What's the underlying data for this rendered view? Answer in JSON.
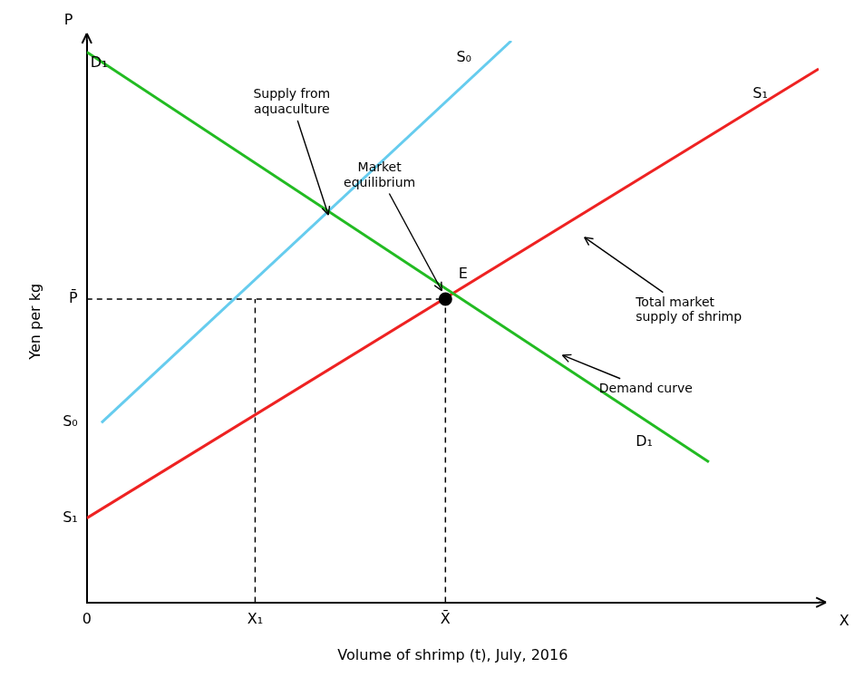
{
  "chart_data": {
    "type": "line",
    "xlabel": "Volume of shrimp (t), July, 2016",
    "ylabel": "Yen per kg",
    "xlim": [
      0,
      10
    ],
    "ylim": [
      0,
      10
    ],
    "xticks": [
      0,
      {
        "value": 2.3,
        "label": "X₁"
      },
      {
        "value": 4.9,
        "label": "X̄"
      }
    ],
    "yticks": [
      {
        "value": 1.5,
        "label": "S₁"
      },
      {
        "value": 3.2,
        "label": "S₀"
      },
      {
        "value": 5.4,
        "label": "P̄"
      }
    ],
    "grid": false,
    "series": [
      {
        "x": [
          0,
          8.5
        ],
        "values": [
          9.8,
          2.5
        ],
        "color": "#22bb22"
      },
      {
        "x": [
          0.2,
          5.8
        ],
        "values": [
          3.2,
          10.0
        ],
        "color": "#66ccee"
      },
      {
        "x": [
          0,
          10
        ],
        "values": [
          1.5,
          9.5
        ],
        "color": "#ee2222"
      },
      {
        "type": "scatter",
        "x": [
          4.9
        ],
        "values": [
          5.4
        ],
        "color": "#000000",
        "marker": "circle"
      },
      {
        "x": [
          0,
          4.9
        ],
        "values": [
          5.4,
          5.4
        ],
        "color": "#000000",
        "line_style": "dashed"
      },
      {
        "x": [
          2.3,
          2.3
        ],
        "values": [
          0,
          5.4
        ],
        "color": "#000000",
        "line_style": "dashed"
      },
      {
        "x": [
          4.9,
          4.9
        ],
        "values": [
          0,
          5.4
        ],
        "color": "#000000",
        "line_style": "dashed"
      }
    ],
    "annotations": [
      {
        "text": "X",
        "x": 10.35,
        "y": -0.35
      },
      {
        "text": "P",
        "x": -0.25,
        "y": 10.35
      },
      {
        "text": "D₁",
        "x": 0.05,
        "y": 9.6
      },
      {
        "text": "D₁",
        "x": 7.5,
        "y": 2.85
      },
      {
        "text": "S₀",
        "x": 5.05,
        "y": 9.7
      },
      {
        "text": "S₁",
        "x": 9.1,
        "y": 9.05
      },
      {
        "text": "E",
        "x": 5.08,
        "y": 5.68
      },
      {
        "text": "Supply from\naquaculture",
        "x": 2.8,
        "y": 8.9,
        "arrow_x": 3.3,
        "arrow_y": 6.9
      },
      {
        "text": "Market\nequilibrium",
        "x": 4.0,
        "y": 7.6,
        "arrow_x": 4.85,
        "arrow_y": 5.55
      },
      {
        "text": "Total market\nsupply of shrimp",
        "x": 7.5,
        "y": 5.2,
        "arrow_x": 6.8,
        "arrow_y": 6.5
      },
      {
        "text": "Demand curve",
        "x": 7.0,
        "y": 3.8,
        "arrow_x": 6.5,
        "arrow_y": 4.4
      }
    ]
  }
}
